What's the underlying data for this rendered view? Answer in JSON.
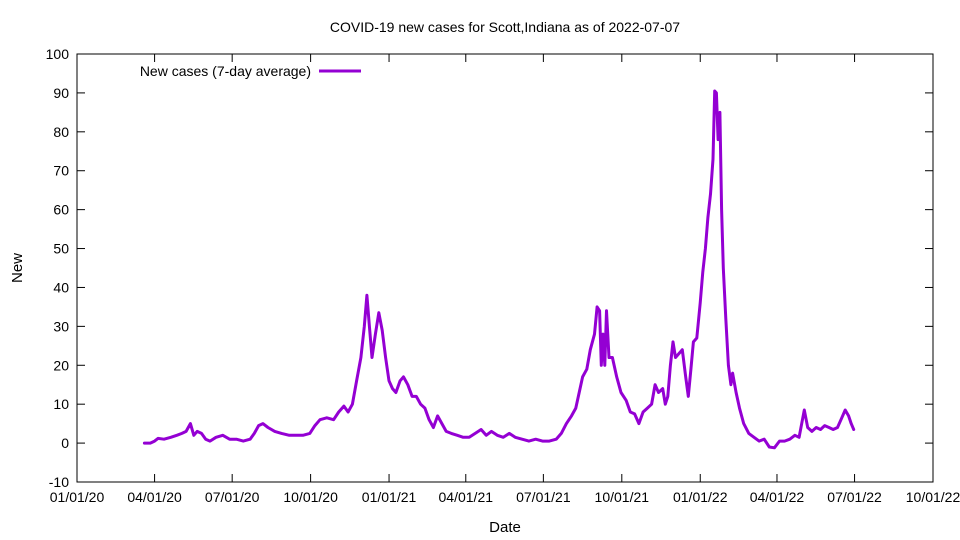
{
  "chart_data": {
    "type": "line",
    "title": "COVID-19 new cases for Scott,Indiana as of 2022-07-07",
    "xlabel": "Date",
    "ylabel": "New",
    "xlim": [
      "2020-01-01",
      "2022-10-01"
    ],
    "ylim": [
      -10,
      100
    ],
    "grid": false,
    "legend_position": "top-left",
    "x_ticks": [
      "2020-01-01",
      "2020-04-01",
      "2020-07-01",
      "2020-10-01",
      "2021-01-01",
      "2021-04-01",
      "2021-07-01",
      "2021-10-01",
      "2022-01-01",
      "2022-04-01",
      "2022-07-01",
      "2022-10-01"
    ],
    "x_tick_labels": [
      "01/01/20",
      "04/01/20",
      "07/01/20",
      "10/01/20",
      "01/01/21",
      "04/01/21",
      "07/01/21",
      "10/01/21",
      "01/01/22",
      "04/01/22",
      "07/01/22",
      "10/01/22"
    ],
    "y_ticks": [
      -10,
      0,
      10,
      20,
      30,
      40,
      50,
      60,
      70,
      80,
      90,
      100
    ],
    "y_tick_labels": [
      "-10",
      "0",
      "10",
      "20",
      "30",
      "40",
      "50",
      "60",
      "70",
      "80",
      "90",
      "100"
    ],
    "series": [
      {
        "name": "New cases (7-day average)",
        "color": "#9400d3",
        "points": [
          [
            "2020-03-20",
            0
          ],
          [
            "2020-03-27",
            0
          ],
          [
            "2020-04-01",
            0.5
          ],
          [
            "2020-04-05",
            1.2
          ],
          [
            "2020-04-12",
            1
          ],
          [
            "2020-04-20",
            1.5
          ],
          [
            "2020-04-27",
            2
          ],
          [
            "2020-05-03",
            2.5
          ],
          [
            "2020-05-08",
            3
          ],
          [
            "2020-05-13",
            5
          ],
          [
            "2020-05-17",
            2
          ],
          [
            "2020-05-21",
            3
          ],
          [
            "2020-05-26",
            2.5
          ],
          [
            "2020-05-31",
            1
          ],
          [
            "2020-06-05",
            0.5
          ],
          [
            "2020-06-12",
            1.5
          ],
          [
            "2020-06-20",
            2
          ],
          [
            "2020-06-28",
            1
          ],
          [
            "2020-07-06",
            1
          ],
          [
            "2020-07-14",
            0.5
          ],
          [
            "2020-07-22",
            1
          ],
          [
            "2020-07-27",
            2.5
          ],
          [
            "2020-08-01",
            4.5
          ],
          [
            "2020-08-06",
            5
          ],
          [
            "2020-08-12",
            4
          ],
          [
            "2020-08-20",
            3
          ],
          [
            "2020-08-28",
            2.5
          ],
          [
            "2020-09-06",
            2
          ],
          [
            "2020-09-14",
            2
          ],
          [
            "2020-09-22",
            2
          ],
          [
            "2020-09-30",
            2.5
          ],
          [
            "2020-10-06",
            4.5
          ],
          [
            "2020-10-12",
            6
          ],
          [
            "2020-10-20",
            6.5
          ],
          [
            "2020-10-28",
            6
          ],
          [
            "2020-11-03",
            8
          ],
          [
            "2020-11-09",
            9.5
          ],
          [
            "2020-11-14",
            8
          ],
          [
            "2020-11-19",
            10
          ],
          [
            "2020-11-24",
            16
          ],
          [
            "2020-11-29",
            22
          ],
          [
            "2020-12-03",
            30
          ],
          [
            "2020-12-06",
            38
          ],
          [
            "2020-12-09",
            30
          ],
          [
            "2020-12-12",
            22
          ],
          [
            "2020-12-16",
            28
          ],
          [
            "2020-12-20",
            33.5
          ],
          [
            "2020-12-24",
            29
          ],
          [
            "2020-12-28",
            22
          ],
          [
            "2021-01-01",
            16
          ],
          [
            "2021-01-05",
            14
          ],
          [
            "2021-01-09",
            13
          ],
          [
            "2021-01-14",
            16
          ],
          [
            "2021-01-18",
            17
          ],
          [
            "2021-01-23",
            15
          ],
          [
            "2021-01-28",
            12
          ],
          [
            "2021-02-02",
            12
          ],
          [
            "2021-02-07",
            10
          ],
          [
            "2021-02-12",
            9
          ],
          [
            "2021-02-17",
            6
          ],
          [
            "2021-02-22",
            4
          ],
          [
            "2021-02-27",
            7
          ],
          [
            "2021-03-04",
            5
          ],
          [
            "2021-03-09",
            3
          ],
          [
            "2021-03-15",
            2.5
          ],
          [
            "2021-03-22",
            2
          ],
          [
            "2021-03-29",
            1.5
          ],
          [
            "2021-04-05",
            1.5
          ],
          [
            "2021-04-12",
            2.5
          ],
          [
            "2021-04-19",
            3.5
          ],
          [
            "2021-04-25",
            2
          ],
          [
            "2021-05-01",
            3
          ],
          [
            "2021-05-08",
            2
          ],
          [
            "2021-05-15",
            1.5
          ],
          [
            "2021-05-22",
            2.5
          ],
          [
            "2021-05-29",
            1.5
          ],
          [
            "2021-06-06",
            1
          ],
          [
            "2021-06-14",
            0.5
          ],
          [
            "2021-06-22",
            1
          ],
          [
            "2021-06-30",
            0.5
          ],
          [
            "2021-07-08",
            0.5
          ],
          [
            "2021-07-16",
            1
          ],
          [
            "2021-07-22",
            2.5
          ],
          [
            "2021-07-28",
            5
          ],
          [
            "2021-08-03",
            7
          ],
          [
            "2021-08-08",
            9
          ],
          [
            "2021-08-12",
            13
          ],
          [
            "2021-08-16",
            17
          ],
          [
            "2021-08-21",
            19
          ],
          [
            "2021-08-25",
            24
          ],
          [
            "2021-08-30",
            28
          ],
          [
            "2021-09-02",
            35
          ],
          [
            "2021-09-05",
            34
          ],
          [
            "2021-09-07",
            20
          ],
          [
            "2021-09-09",
            28
          ],
          [
            "2021-09-11",
            20
          ],
          [
            "2021-09-13",
            34
          ],
          [
            "2021-09-16",
            22
          ],
          [
            "2021-09-20",
            22
          ],
          [
            "2021-09-25",
            17
          ],
          [
            "2021-09-30",
            13
          ],
          [
            "2021-10-06",
            11
          ],
          [
            "2021-10-11",
            8
          ],
          [
            "2021-10-16",
            7.5
          ],
          [
            "2021-10-21",
            5
          ],
          [
            "2021-10-26",
            8
          ],
          [
            "2021-10-31",
            9
          ],
          [
            "2021-11-05",
            10
          ],
          [
            "2021-11-09",
            15
          ],
          [
            "2021-11-13",
            13
          ],
          [
            "2021-11-18",
            14
          ],
          [
            "2021-11-21",
            10
          ],
          [
            "2021-11-24",
            12
          ],
          [
            "2021-11-27",
            20
          ],
          [
            "2021-11-30",
            26
          ],
          [
            "2021-12-03",
            22
          ],
          [
            "2021-12-07",
            23
          ],
          [
            "2021-12-11",
            24
          ],
          [
            "2021-12-15",
            17
          ],
          [
            "2021-12-18",
            12
          ],
          [
            "2021-12-21",
            19
          ],
          [
            "2021-12-24",
            26
          ],
          [
            "2021-12-28",
            27
          ],
          [
            "2022-01-01",
            36
          ],
          [
            "2022-01-04",
            44
          ],
          [
            "2022-01-07",
            50
          ],
          [
            "2022-01-10",
            58
          ],
          [
            "2022-01-13",
            64
          ],
          [
            "2022-01-16",
            73
          ],
          [
            "2022-01-18",
            90.5
          ],
          [
            "2022-01-20",
            90
          ],
          [
            "2022-01-22",
            78
          ],
          [
            "2022-01-24",
            85
          ],
          [
            "2022-01-26",
            60
          ],
          [
            "2022-01-28",
            45
          ],
          [
            "2022-01-31",
            32
          ],
          [
            "2022-02-03",
            20
          ],
          [
            "2022-02-06",
            15
          ],
          [
            "2022-02-08",
            18
          ],
          [
            "2022-02-12",
            13
          ],
          [
            "2022-02-16",
            9
          ],
          [
            "2022-02-21",
            5
          ],
          [
            "2022-02-27",
            2.5
          ],
          [
            "2022-03-05",
            1.5
          ],
          [
            "2022-03-11",
            0.5
          ],
          [
            "2022-03-17",
            1
          ],
          [
            "2022-03-23",
            -1
          ],
          [
            "2022-03-29",
            -1.2
          ],
          [
            "2022-04-04",
            0.5
          ],
          [
            "2022-04-10",
            0.5
          ],
          [
            "2022-04-16",
            1
          ],
          [
            "2022-04-22",
            2
          ],
          [
            "2022-04-27",
            1.5
          ],
          [
            "2022-04-30",
            5
          ],
          [
            "2022-05-03",
            8.5
          ],
          [
            "2022-05-07",
            4
          ],
          [
            "2022-05-12",
            3
          ],
          [
            "2022-05-17",
            4
          ],
          [
            "2022-05-22",
            3.5
          ],
          [
            "2022-05-27",
            4.5
          ],
          [
            "2022-06-01",
            4
          ],
          [
            "2022-06-06",
            3.5
          ],
          [
            "2022-06-11",
            4
          ],
          [
            "2022-06-16",
            6.5
          ],
          [
            "2022-06-20",
            8.5
          ],
          [
            "2022-06-24",
            7
          ],
          [
            "2022-06-27",
            5
          ],
          [
            "2022-06-30",
            3.5
          ]
        ]
      }
    ]
  }
}
